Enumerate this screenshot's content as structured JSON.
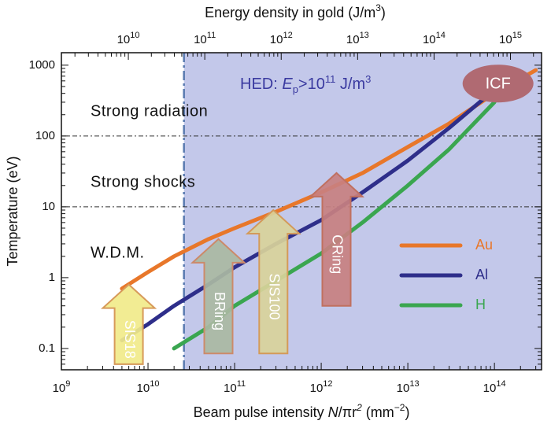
{
  "chart_data": {
    "type": "line",
    "xlabel_parts": [
      "Beam pulse intensity ",
      "N",
      "/πr",
      "2",
      " (mm",
      "−2",
      ")"
    ],
    "x2label_parts": [
      "Energy density in gold (J/m",
      "3",
      ")"
    ],
    "ylabel": "Temperature (eV)",
    "x_scale": "log",
    "y_scale": "log",
    "xlim": [
      1000000000.0,
      350000000000000.0
    ],
    "x2lim": [
      1330000000.0,
      2550000000000000.0
    ],
    "ylim": [
      0.05,
      1500
    ],
    "x_ticks": [
      {
        "value": 1000000000.0,
        "base": "10",
        "exp": "9"
      },
      {
        "value": 10000000000.0,
        "base": "10",
        "exp": "10"
      },
      {
        "value": 100000000000.0,
        "base": "10",
        "exp": "11"
      },
      {
        "value": 1000000000000.0,
        "base": "10",
        "exp": "12"
      },
      {
        "value": 10000000000000.0,
        "base": "10",
        "exp": "13"
      },
      {
        "value": 100000000000000.0,
        "base": "10",
        "exp": "14"
      }
    ],
    "x2_ticks": [
      {
        "value": 10000000000.0,
        "base": "10",
        "exp": "10"
      },
      {
        "value": 100000000000.0,
        "base": "10",
        "exp": "11"
      },
      {
        "value": 1000000000000.0,
        "base": "10",
        "exp": "12"
      },
      {
        "value": 10000000000000.0,
        "base": "10",
        "exp": "13"
      },
      {
        "value": 100000000000000.0,
        "base": "10",
        "exp": "14"
      },
      {
        "value": 1000000000000000.0,
        "base": "10",
        "exp": "15"
      }
    ],
    "y_ticks": [
      {
        "value": 0.1,
        "label": "0.1"
      },
      {
        "value": 1,
        "label": "1"
      },
      {
        "value": 10,
        "label": "10"
      },
      {
        "value": 100,
        "label": "100"
      },
      {
        "value": 1000,
        "label": "1000"
      }
    ],
    "hed_threshold_x": 26000000000.0,
    "hed_label_parts": [
      "HED: ",
      "E",
      "p",
      ">10",
      "11",
      " J/m",
      "3"
    ],
    "region_boundaries_y": [
      10,
      100
    ],
    "regions": [
      {
        "label": "Strong radiation",
        "y": 220
      },
      {
        "label": "Strong shocks",
        "y": 22
      },
      {
        "label": "W.D.M.",
        "y": 2.2
      }
    ],
    "series": [
      {
        "name": "Au",
        "color": "#e8772a",
        "x": [
          5000000000.0,
          10000000000.0,
          20000000000.0,
          50000000000.0,
          100000000000.0,
          300000000000.0,
          1000000000000.0,
          3000000000000.0,
          10000000000000.0,
          30000000000000.0,
          100000000000000.0,
          300000000000000.0
        ],
        "y": [
          0.7,
          1.2,
          2.0,
          3.5,
          5.0,
          8.5,
          16,
          30,
          70,
          150,
          400,
          850
        ]
      },
      {
        "name": "Al",
        "color": "#2e2e8a",
        "x": [
          5000000000.0,
          10000000000.0,
          20000000000.0,
          50000000000.0,
          100000000000.0,
          300000000000.0,
          1000000000000.0,
          3000000000000.0,
          10000000000000.0,
          30000000000000.0,
          100000000000000.0
        ],
        "y": [
          0.13,
          0.22,
          0.4,
          0.8,
          1.4,
          3.0,
          6.5,
          16,
          45,
          130,
          450
        ]
      },
      {
        "name": "H",
        "color": "#3aa650",
        "x": [
          20000000000.0,
          50000000000.0,
          100000000000.0,
          300000000000.0,
          1000000000000.0,
          3000000000000.0,
          10000000000000.0,
          30000000000000.0,
          100000000000000.0
        ],
        "y": [
          0.1,
          0.2,
          0.4,
          0.9,
          2.2,
          6.0,
          20,
          65,
          300
        ]
      }
    ],
    "facilities": [
      {
        "label": "SIS18",
        "x": 6000000000.0,
        "y_bottom": 0.06,
        "y_top": 0.8,
        "color": "#f1ea8a",
        "border": "#d79a5a"
      },
      {
        "label": "BRing",
        "x": 65000000000.0,
        "y_bottom": 0.085,
        "y_top": 3.5,
        "color": "#aab8a2",
        "border": "#cc8a6a"
      },
      {
        "label": "SIS100",
        "x": 280000000000.0,
        "y_bottom": 0.085,
        "y_top": 9,
        "color": "#d9d39a",
        "border": "#d39a5a"
      },
      {
        "label": "CRing",
        "x": 1500000000000.0,
        "y_bottom": 0.4,
        "y_top": 30,
        "color": "#c88080",
        "border": "#c07060"
      }
    ],
    "icf": {
      "label": "ICF",
      "x": 110000000000000.0,
      "y": 550,
      "color": "#b06a72"
    }
  }
}
